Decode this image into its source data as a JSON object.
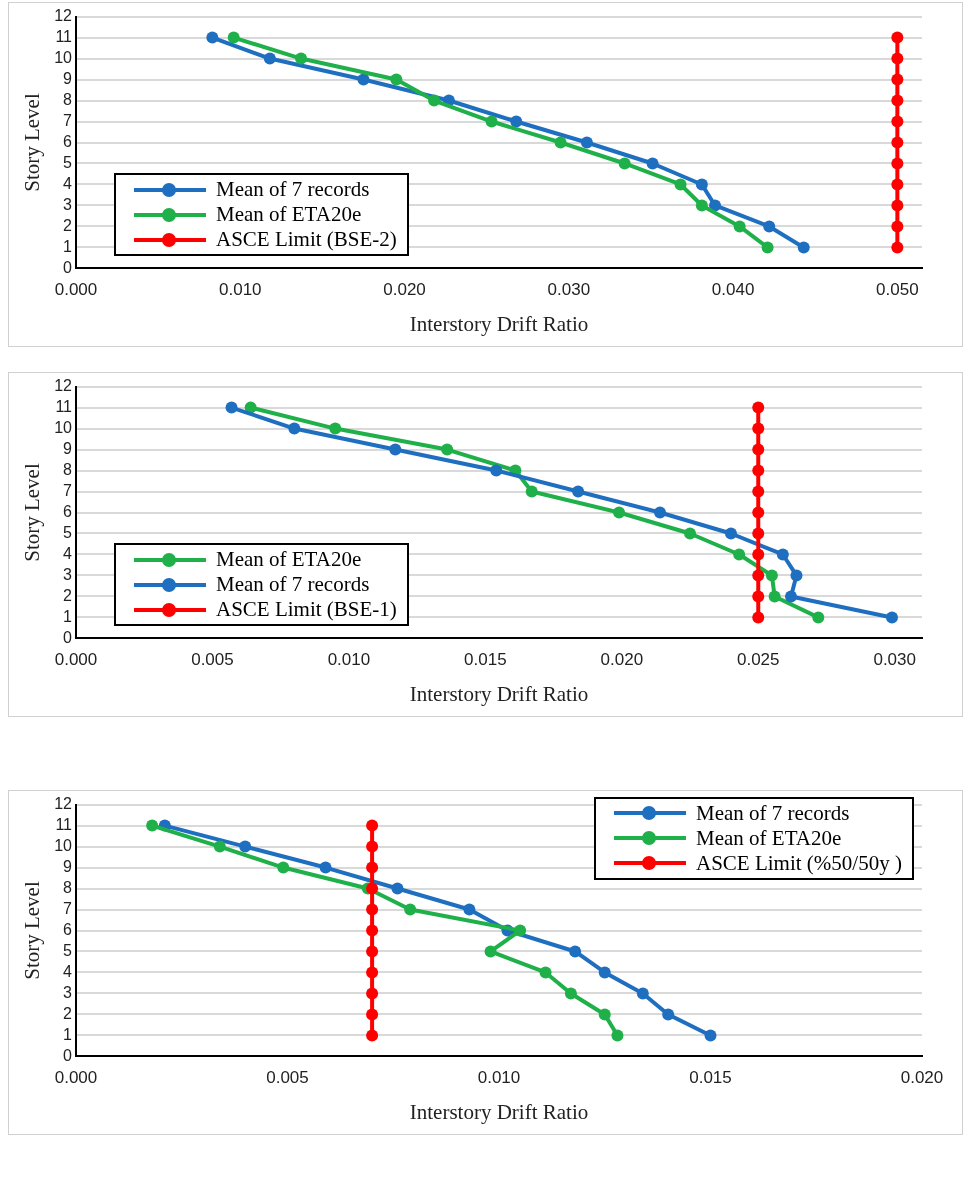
{
  "chart_data": [
    {
      "type": "line",
      "xlabel": "Interstory Drift Ratio",
      "ylabel": "Story Level",
      "xlim": [
        0,
        0.0515
      ],
      "xticks": [
        {
          "value": 0,
          "label": "0.000"
        },
        {
          "value": 0.01,
          "label": "0.010"
        },
        {
          "value": 0.02,
          "label": "0.020"
        },
        {
          "value": 0.03,
          "label": "0.030"
        },
        {
          "value": 0.04,
          "label": "0.040"
        },
        {
          "value": 0.05,
          "label": "0.050"
        }
      ],
      "ylim": [
        0,
        12
      ],
      "yticks": [
        0,
        1,
        2,
        3,
        4,
        5,
        6,
        7,
        8,
        9,
        10,
        11,
        12
      ],
      "grid": "y",
      "legend": "bottom left",
      "marker": "circle",
      "line_style": "solid",
      "series": [
        {
          "name": "Mean of 7 records",
          "color": "#1f6fc0",
          "x": [
            0.0083,
            0.0118,
            0.0175,
            0.0227,
            0.0268,
            0.0311,
            0.0351,
            0.0381,
            0.0389,
            0.0422,
            0.0443
          ],
          "values": [
            11,
            10,
            9,
            8,
            7,
            6,
            5,
            4,
            3,
            2,
            1
          ]
        },
        {
          "name": "Mean of ETA20e",
          "color": "#1fb04a",
          "x": [
            0.0096,
            0.0137,
            0.0195,
            0.0218,
            0.0253,
            0.0295,
            0.0334,
            0.0368,
            0.0381,
            0.0404,
            0.0421
          ],
          "values": [
            11,
            10,
            9,
            8,
            7,
            6,
            5,
            4,
            3,
            2,
            1
          ]
        },
        {
          "name": "ASCE Limit (BSE-2)",
          "color": "#ff0000",
          "x": [
            0.05,
            0.05,
            0.05,
            0.05,
            0.05,
            0.05,
            0.05,
            0.05,
            0.05,
            0.05,
            0.05
          ],
          "values": [
            11,
            10,
            9,
            8,
            7,
            6,
            5,
            4,
            3,
            2,
            1
          ]
        }
      ]
    },
    {
      "type": "line",
      "xlabel": "Interstory Drift Ratio",
      "ylabel": "Story Level",
      "xlim": [
        0,
        0.031
      ],
      "xticks": [
        {
          "value": 0,
          "label": "0.000"
        },
        {
          "value": 0.005,
          "label": "0.005"
        },
        {
          "value": 0.01,
          "label": "0.010"
        },
        {
          "value": 0.015,
          "label": "0.015"
        },
        {
          "value": 0.02,
          "label": "0.020"
        },
        {
          "value": 0.025,
          "label": "0.025"
        },
        {
          "value": 0.03,
          "label": "0.030"
        }
      ],
      "ylim": [
        0,
        12
      ],
      "yticks": [
        0,
        1,
        2,
        3,
        4,
        5,
        6,
        7,
        8,
        9,
        10,
        11,
        12
      ],
      "grid": "y",
      "legend": "bottom left",
      "marker": "circle",
      "line_style": "solid",
      "series": [
        {
          "name": "Mean of ETA20e",
          "color": "#1fb04a",
          "x": [
            0.0064,
            0.0095,
            0.0136,
            0.0161,
            0.0167,
            0.0199,
            0.0225,
            0.0243,
            0.0255,
            0.0256,
            0.0272
          ],
          "values": [
            11,
            10,
            9,
            8,
            7,
            6,
            5,
            4,
            3,
            2,
            1
          ]
        },
        {
          "name": "Mean of 7 records",
          "color": "#1f6fc0",
          "x": [
            0.0057,
            0.008,
            0.0117,
            0.0154,
            0.0184,
            0.0214,
            0.024,
            0.0259,
            0.0264,
            0.0262,
            0.0299
          ],
          "values": [
            11,
            10,
            9,
            8,
            7,
            6,
            5,
            4,
            3,
            2,
            1
          ]
        },
        {
          "name": "ASCE Limit (BSE-1)",
          "color": "#ff0000",
          "x": [
            0.025,
            0.025,
            0.025,
            0.025,
            0.025,
            0.025,
            0.025,
            0.025,
            0.025,
            0.025,
            0.025
          ],
          "values": [
            11,
            10,
            9,
            8,
            7,
            6,
            5,
            4,
            3,
            2,
            1
          ]
        }
      ]
    },
    {
      "type": "line",
      "xlabel": "Interstory Drift Ratio",
      "ylabel": "Story Level",
      "xlim": [
        0,
        0.02
      ],
      "xticks": [
        {
          "value": 0,
          "label": "0.000"
        },
        {
          "value": 0.005,
          "label": "0.005"
        },
        {
          "value": 0.01,
          "label": "0.010"
        },
        {
          "value": 0.015,
          "label": "0.015"
        },
        {
          "value": 0.02,
          "label": "0.020"
        }
      ],
      "ylim": [
        0,
        12
      ],
      "yticks": [
        0,
        1,
        2,
        3,
        4,
        5,
        6,
        7,
        8,
        9,
        10,
        11,
        12
      ],
      "grid": "y",
      "legend": "top right",
      "marker": "circle",
      "line_style": "solid",
      "series": [
        {
          "name": "Mean of 7 records",
          "color": "#1f6fc0",
          "x": [
            0.0021,
            0.004,
            0.0059,
            0.0076,
            0.0093,
            0.0102,
            0.0118,
            0.0125,
            0.0134,
            0.014,
            0.015
          ],
          "values": [
            11,
            10,
            9,
            8,
            7,
            6,
            5,
            4,
            3,
            2,
            1
          ]
        },
        {
          "name": "Mean of ETA20e",
          "color": "#1fb04a",
          "x": [
            0.0018,
            0.0034,
            0.0049,
            0.0069,
            0.0079,
            0.0105,
            0.0098,
            0.0111,
            0.0117,
            0.0125,
            0.0128
          ],
          "values": [
            11,
            10,
            9,
            8,
            7,
            6,
            5,
            4,
            3,
            2,
            1
          ]
        },
        {
          "name": "ASCE Limit (%50/50y )",
          "color": "#ff0000",
          "x": [
            0.007,
            0.007,
            0.007,
            0.007,
            0.007,
            0.007,
            0.007,
            0.007,
            0.007,
            0.007,
            0.007
          ],
          "values": [
            11,
            10,
            9,
            8,
            7,
            6,
            5,
            4,
            3,
            2,
            1
          ]
        }
      ]
    }
  ]
}
